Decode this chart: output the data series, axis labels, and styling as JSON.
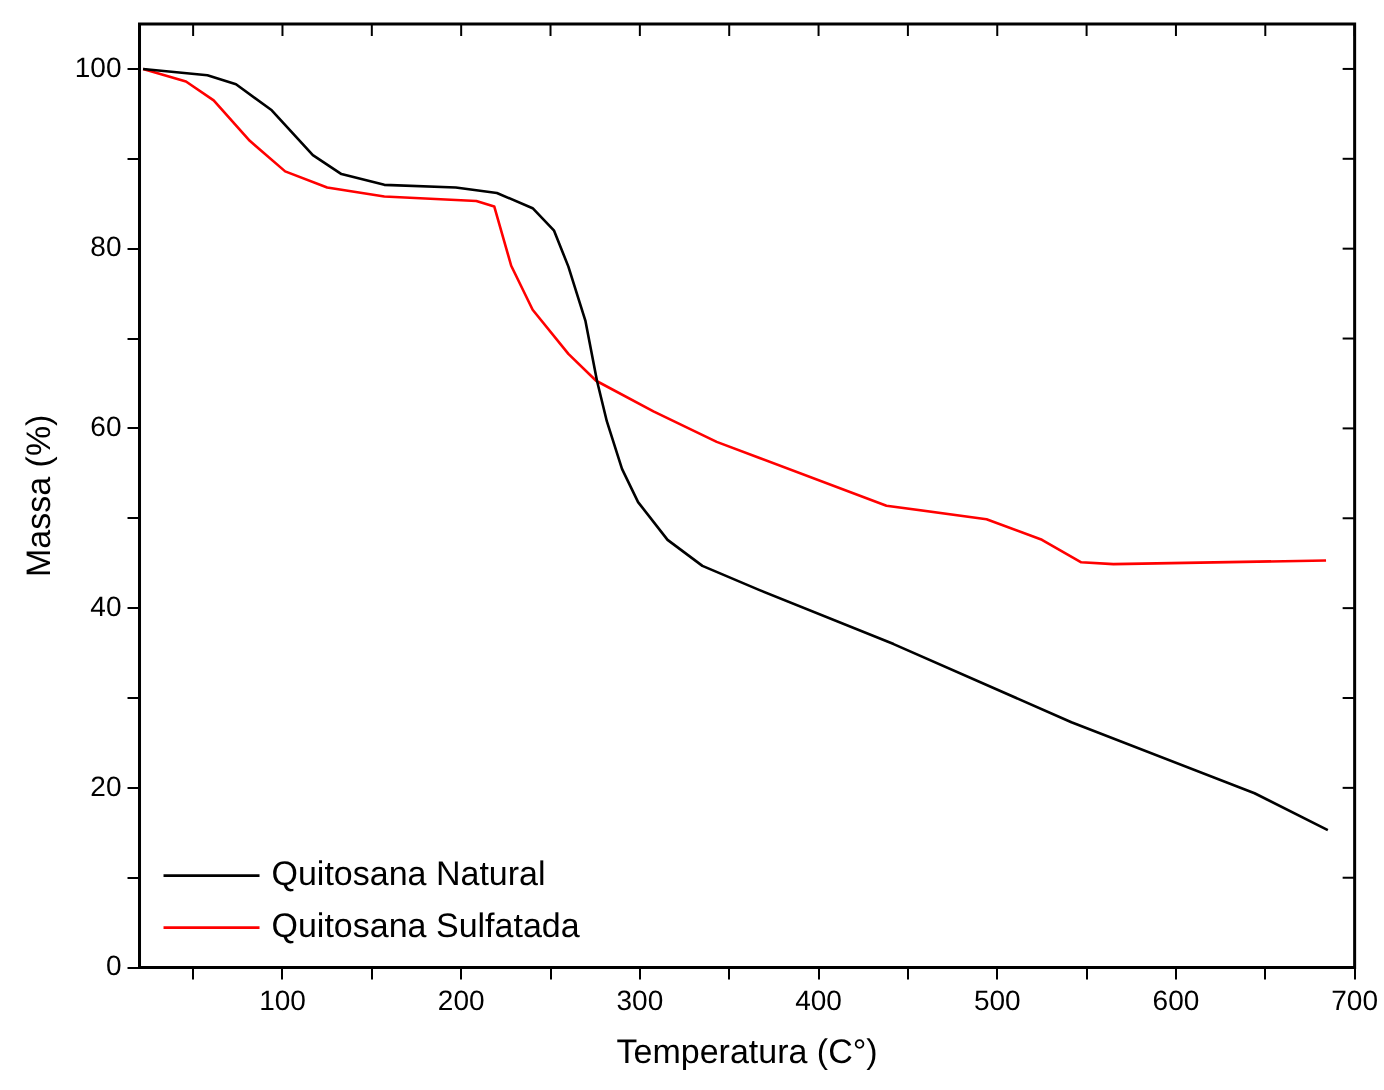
{
  "chart_data": {
    "type": "line",
    "xlabel": "Temperatura (C°)",
    "ylabel": "Massa (%)",
    "xlim": [
      20,
      700
    ],
    "ylim": [
      0,
      105
    ],
    "xticks": [
      {
        "value": 50,
        "label": null
      },
      100,
      {
        "value": 150,
        "label": null
      },
      200,
      {
        "value": 250,
        "label": null
      },
      300,
      {
        "value": 350,
        "label": null
      },
      400,
      {
        "value": 450,
        "label": null
      },
      500,
      {
        "value": 550,
        "label": null
      },
      600,
      {
        "value": 650,
        "label": null
      },
      700
    ],
    "yticks": [
      0,
      {
        "value": 10,
        "label": null
      },
      20,
      {
        "value": 30,
        "label": null
      },
      40,
      {
        "value": 50,
        "label": null
      },
      60,
      {
        "value": 70,
        "label": null
      },
      80,
      {
        "value": 90,
        "label": null
      },
      100
    ],
    "grid": false,
    "legend": "bottom left",
    "marker": "none",
    "line_style": "solid",
    "series": [
      {
        "name": "Quitosana Natural",
        "color": "#000000",
        "x": [
          22,
          58,
          74,
          94,
          117,
          133,
          157,
          197,
          220,
          240,
          252,
          260,
          269.5,
          276,
          281.5,
          290,
          299,
          315.5,
          335,
          367,
          442,
          541.5,
          644,
          685
        ],
        "values": [
          100,
          99.3,
          98.3,
          95.4,
          90.4,
          88.3,
          87.1,
          86.8,
          86.2,
          84.5,
          82,
          78,
          72,
          65.3,
          60.8,
          55.5,
          51.8,
          47.6,
          44.7,
          42,
          36,
          27.3,
          19.4,
          15.3
        ]
      },
      {
        "name": "Quitosana Sulfatada",
        "color": "#ff0000",
        "x": [
          22,
          46,
          61.5,
          81.7,
          101.5,
          125,
          157,
          208.5,
          218.5,
          228,
          240,
          260,
          275.5,
          307.6,
          343,
          367,
          438,
          494,
          525,
          547,
          565,
          684
        ],
        "values": [
          100,
          98.6,
          96.5,
          92,
          88.6,
          86.8,
          85.8,
          85.3,
          84.7,
          78.1,
          73.2,
          68.3,
          65.3,
          61.9,
          58.5,
          56.7,
          51.4,
          49.9,
          47.6,
          45.1,
          44.9,
          45.3
        ]
      }
    ]
  }
}
